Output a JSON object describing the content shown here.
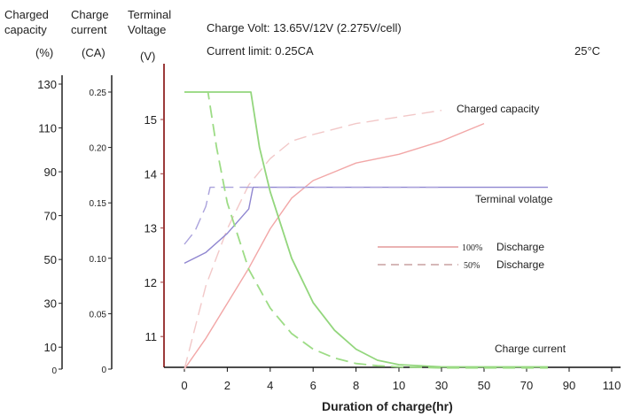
{
  "chart_data": {
    "type": "line",
    "notes": {
      "charge_volt": "Charge Volt: 13.65V/12V (2.275V/cell)",
      "current_limit": "Current limit: 0.25CA",
      "temperature": "25°C"
    },
    "xlabel": "Duration of charge(hr)",
    "x_ticks": [
      "0",
      "2",
      "4",
      "6",
      "8",
      "10",
      "30",
      "50",
      "70",
      "90",
      "110"
    ],
    "axes": {
      "capacity": {
        "title": [
          "Charged",
          "capacity"
        ],
        "unit": "(%)",
        "ticks": [
          "130",
          "110",
          "90",
          "70",
          "50",
          "30",
          "10",
          "0"
        ],
        "range": [
          0,
          130
        ]
      },
      "current": {
        "title": [
          "Charge",
          "current"
        ],
        "unit": "(CA)",
        "ticks": [
          "0.25",
          "0.20",
          "0.15",
          "0.10",
          "0.05",
          "0"
        ],
        "range": [
          0,
          0.25
        ]
      },
      "voltage": {
        "title": [
          "Terminal",
          "Voltage"
        ],
        "unit": "(V)",
        "ticks": [
          "15",
          "14",
          "13",
          "12",
          "11"
        ],
        "range": [
          10.5,
          15.5
        ]
      }
    },
    "curve_labels": {
      "capacity": "Charged capacity",
      "voltage": "Terminal volatge",
      "current": "Charge current"
    },
    "legend": [
      {
        "pct": "100%",
        "label": "Discharge",
        "style": "solid"
      },
      {
        "pct": "50%",
        "label": "Discharge",
        "style": "dashed"
      }
    ],
    "series": [
      {
        "quantity": "capacity",
        "discharge": "100%",
        "x": [
          0,
          1,
          2,
          3,
          4,
          5,
          6,
          8,
          10,
          30,
          50
        ],
        "y": [
          0,
          14,
          30,
          46,
          64,
          78,
          86,
          94,
          98,
          104,
          112
        ]
      },
      {
        "quantity": "capacity",
        "discharge": "50%",
        "x": [
          0,
          1,
          2,
          3,
          4,
          5,
          6,
          8,
          10,
          30
        ],
        "y": [
          0,
          38,
          64,
          84,
          96,
          104,
          107,
          112,
          115,
          118
        ]
      },
      {
        "quantity": "voltage",
        "discharge": "100%",
        "x": [
          0,
          1,
          2,
          3,
          3.2,
          4,
          10,
          50,
          70,
          80
        ],
        "y": [
          12.35,
          12.55,
          12.9,
          13.35,
          13.75,
          13.75,
          13.75,
          13.75,
          13.75,
          13.75
        ]
      },
      {
        "quantity": "voltage",
        "discharge": "50%",
        "x": [
          0,
          0.5,
          1,
          1.2,
          2,
          10,
          30
        ],
        "y": [
          12.7,
          12.95,
          13.4,
          13.75,
          13.75,
          13.75,
          13.75
        ]
      },
      {
        "quantity": "current",
        "discharge": "100%",
        "x": [
          0,
          3.1,
          3.5,
          4,
          5,
          6,
          7,
          8,
          9,
          10,
          30,
          50,
          80
        ],
        "y": [
          0.25,
          0.25,
          0.2,
          0.16,
          0.1,
          0.06,
          0.035,
          0.018,
          0.008,
          0.004,
          0.002,
          0.002,
          0.002
        ]
      },
      {
        "quantity": "current",
        "discharge": "50%",
        "x": [
          0,
          1.1,
          1.5,
          2,
          3,
          4,
          5,
          6,
          7,
          8,
          9,
          10,
          30,
          80
        ],
        "y": [
          0.25,
          0.25,
          0.2,
          0.15,
          0.09,
          0.055,
          0.032,
          0.018,
          0.01,
          0.005,
          0.003,
          0.002,
          0.001,
          0.001
        ]
      }
    ],
    "colors": {
      "capacity_100": "#f2a7a7",
      "capacity_50": "#f2c8c8",
      "voltage_100": "#8f86d0",
      "voltage_50": "#aaa2dc",
      "current_100": "#93d67d",
      "current_50": "#9ddc86",
      "axis_left": "#222222",
      "axis_voltage": "#9b3a3a",
      "axis_x": "#111111"
    }
  }
}
